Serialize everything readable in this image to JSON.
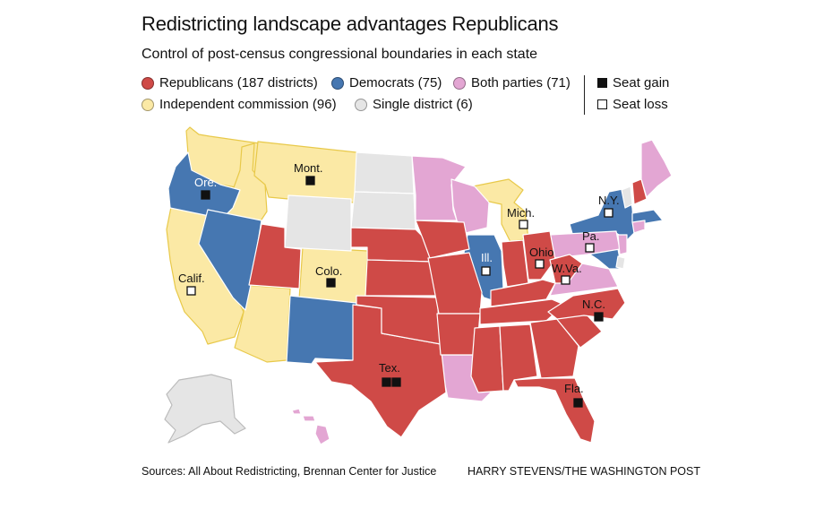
{
  "title": "Redistricting landscape advantages Republicans",
  "subtitle": "Control of post-census congressional boundaries in each state",
  "legend": {
    "republicans": "Republicans (187 districts)",
    "democrats": "Democrats (75)",
    "both": "Both parties (71)",
    "independent": "Independent commission (96)",
    "single": "Single district (6)",
    "seat_gain": "Seat gain",
    "seat_loss": "Seat loss"
  },
  "colors": {
    "republicans": "#cf4a47",
    "democrats": "#4677b1",
    "both": "#e3a6d3",
    "independent": "#fbe9a5",
    "single": "#e5e5e5"
  },
  "state_labels": {
    "oregon": "Ore.",
    "montana": "Mont.",
    "california": "Calif.",
    "colorado": "Colo.",
    "texas": "Tex.",
    "illinois": "Ill.",
    "michigan": "Mich.",
    "ohio": "Ohio",
    "west_virginia": "W.Va.",
    "pennsylvania": "Pa.",
    "new_york": "N.Y.",
    "north_carolina": "N.C.",
    "florida": "Fla."
  },
  "seat_changes": {
    "oregon": "gain",
    "montana": "gain",
    "colorado": "gain",
    "north_carolina": "gain",
    "florida": "gain",
    "texas": "gain x2",
    "california": "loss",
    "illinois": "loss",
    "michigan": "loss",
    "ohio": "loss",
    "west_virginia": "loss",
    "pennsylvania": "loss",
    "new_york": "loss"
  },
  "footer": {
    "sources": "Sources: All About Redistricting, Brennan Center for Justice",
    "credit": "HARRY STEVENS/THE WASHINGTON POST"
  }
}
